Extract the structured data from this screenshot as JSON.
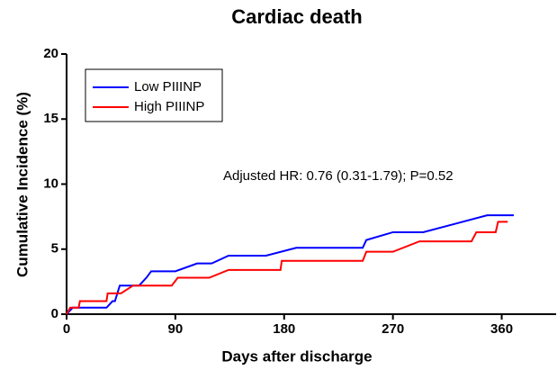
{
  "chart_data": {
    "type": "line",
    "title": "Cardiac death",
    "xlabel": "Days after discharge",
    "ylabel": "Cumulative Incidence (%)",
    "annotation": "Adjusted  HR: 0.76 (0.31-1.79); P=0.52",
    "xlim": [
      0,
      405
    ],
    "xticks": [
      0,
      90,
      180,
      270,
      360
    ],
    "ylim": [
      0,
      20
    ],
    "yticks": [
      0,
      5,
      10,
      15,
      20
    ],
    "legend": "upper left",
    "series": [
      {
        "name": "Low PIIINP",
        "color": "#0000ff",
        "x": [
          0,
          5,
          33,
          38,
          40,
          44,
          60,
          66,
          70,
          90,
          108,
          120,
          134,
          165,
          190,
          245,
          248,
          270,
          295,
          348,
          370
        ],
        "values": [
          0,
          0.5,
          0.5,
          1.0,
          1.0,
          2.2,
          2.2,
          2.8,
          3.3,
          3.3,
          3.9,
          3.9,
          4.5,
          4.5,
          5.1,
          5.1,
          5.7,
          6.3,
          6.3,
          7.6,
          7.6
        ]
      },
      {
        "name": "High PIIINP",
        "color": "#ff0000",
        "x": [
          0,
          3,
          10,
          11,
          33,
          34,
          45,
          55,
          87,
          92,
          118,
          134,
          177,
          178,
          245,
          248,
          270,
          292,
          335,
          339,
          355,
          357,
          365
        ],
        "values": [
          0,
          0.5,
          0.5,
          1.0,
          1.0,
          1.6,
          1.6,
          2.2,
          2.2,
          2.8,
          2.8,
          3.4,
          3.4,
          4.1,
          4.1,
          4.8,
          4.8,
          5.6,
          5.6,
          6.3,
          6.3,
          7.1,
          7.1
        ]
      }
    ]
  }
}
